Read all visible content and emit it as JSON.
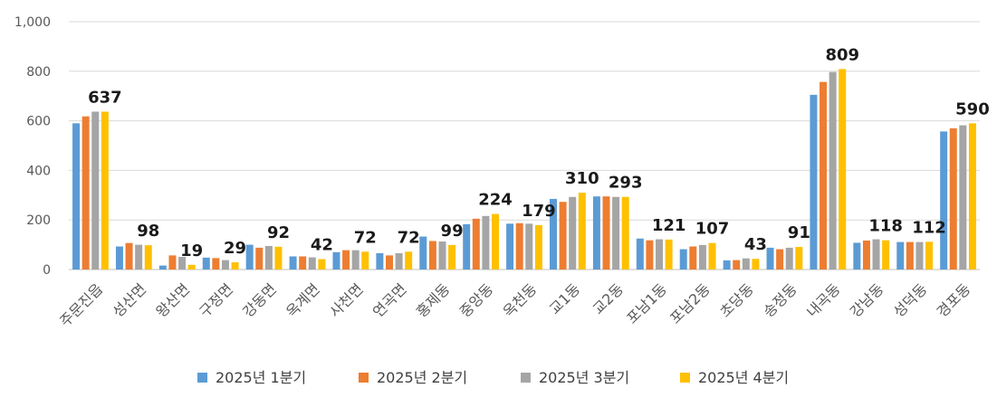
{
  "chart_data": {
    "type": "bar",
    "title": "",
    "xlabel": "",
    "ylabel": "",
    "ylim": [
      0,
      1000
    ],
    "yticks": [
      "0",
      "200",
      "400",
      "600",
      "800",
      "1,000"
    ],
    "grid": true,
    "legend_position": "bottom",
    "categories": [
      "주문진읍",
      "성산면",
      "왕산면",
      "구정면",
      "강동면",
      "옥계면",
      "사천면",
      "연곡면",
      "홍제동",
      "중앙동",
      "옥천동",
      "교1동",
      "교2동",
      "포남1동",
      "포남2동",
      "초당동",
      "송정동",
      "내곡동",
      "강남동",
      "성덕동",
      "경포동"
    ],
    "series": [
      {
        "name": "2025년 1분기",
        "color": "#5b9bd5",
        "values": [
          590,
          93,
          16,
          48,
          100,
          53,
          70,
          66,
          133,
          183,
          185,
          285,
          295,
          125,
          82,
          37,
          88,
          705,
          108,
          111,
          557
        ]
      },
      {
        "name": "2025년 2분기",
        "color": "#ed7d31",
        "values": [
          618,
          107,
          57,
          46,
          88,
          53,
          78,
          57,
          115,
          205,
          187,
          273,
          295,
          118,
          93,
          38,
          82,
          757,
          117,
          111,
          570
        ]
      },
      {
        "name": "2025년 3분기",
        "color": "#a5a5a5",
        "values": [
          637,
          100,
          51,
          38,
          95,
          49,
          78,
          66,
          113,
          216,
          185,
          293,
          293,
          122,
          99,
          45,
          88,
          797,
          122,
          111,
          582
        ]
      },
      {
        "name": "2025년 4분기",
        "color": "#ffc000",
        "values": [
          637,
          98,
          19,
          29,
          92,
          42,
          72,
          72,
          99,
          224,
          179,
          310,
          293,
          121,
          107,
          43,
          91,
          809,
          118,
          112,
          590
        ]
      }
    ],
    "data_labels": [
      "637",
      "98",
      "19",
      "29",
      "92",
      "42",
      "72",
      "72",
      "99",
      "224",
      "179",
      "310",
      "293",
      "121",
      "107",
      "43",
      "91",
      "809",
      "118",
      "112",
      "590"
    ]
  }
}
